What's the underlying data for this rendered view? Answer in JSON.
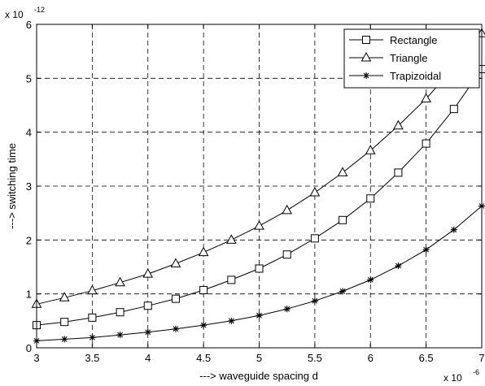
{
  "chart_data": {
    "type": "line",
    "xlabel": "---> waveguide spacing d",
    "ylabel": "---> switching time",
    "x_exponent": {
      "base": "x 10",
      "exp": "-6"
    },
    "y_exponent": {
      "base": "x 10",
      "exp": "-12"
    },
    "xlim": [
      3,
      7
    ],
    "ylim": [
      0,
      6
    ],
    "xticks": [
      "3",
      "3.5",
      "4",
      "4.5",
      "5",
      "5.5",
      "6",
      "6.5",
      "7"
    ],
    "yticks": [
      "0",
      "1",
      "2",
      "3",
      "4",
      "5",
      "6"
    ],
    "grid": true,
    "legend_position": "top-right",
    "x": [
      3,
      3.25,
      3.5,
      3.75,
      4,
      4.25,
      4.5,
      4.75,
      5,
      5.25,
      5.5,
      5.75,
      6,
      6.25,
      6.5,
      6.75,
      7
    ],
    "series": [
      {
        "name": "Rectangle",
        "marker": "square",
        "values": [
          0.42,
          0.48,
          0.56,
          0.66,
          0.78,
          0.91,
          1.07,
          1.26,
          1.47,
          1.73,
          2.03,
          2.37,
          2.77,
          3.25,
          3.79,
          4.43,
          5.17
        ]
      },
      {
        "name": "Triangle",
        "marker": "triangle",
        "values": [
          0.81,
          0.93,
          1.06,
          1.21,
          1.37,
          1.56,
          1.77,
          2.0,
          2.26,
          2.55,
          2.88,
          3.25,
          3.66,
          4.12,
          4.62,
          5.2,
          5.83
        ]
      },
      {
        "name": "Trapizoidal",
        "marker": "star",
        "values": [
          0.13,
          0.16,
          0.19,
          0.24,
          0.29,
          0.35,
          0.42,
          0.5,
          0.6,
          0.72,
          0.87,
          1.05,
          1.26,
          1.52,
          1.82,
          2.19,
          2.63
        ]
      }
    ]
  }
}
